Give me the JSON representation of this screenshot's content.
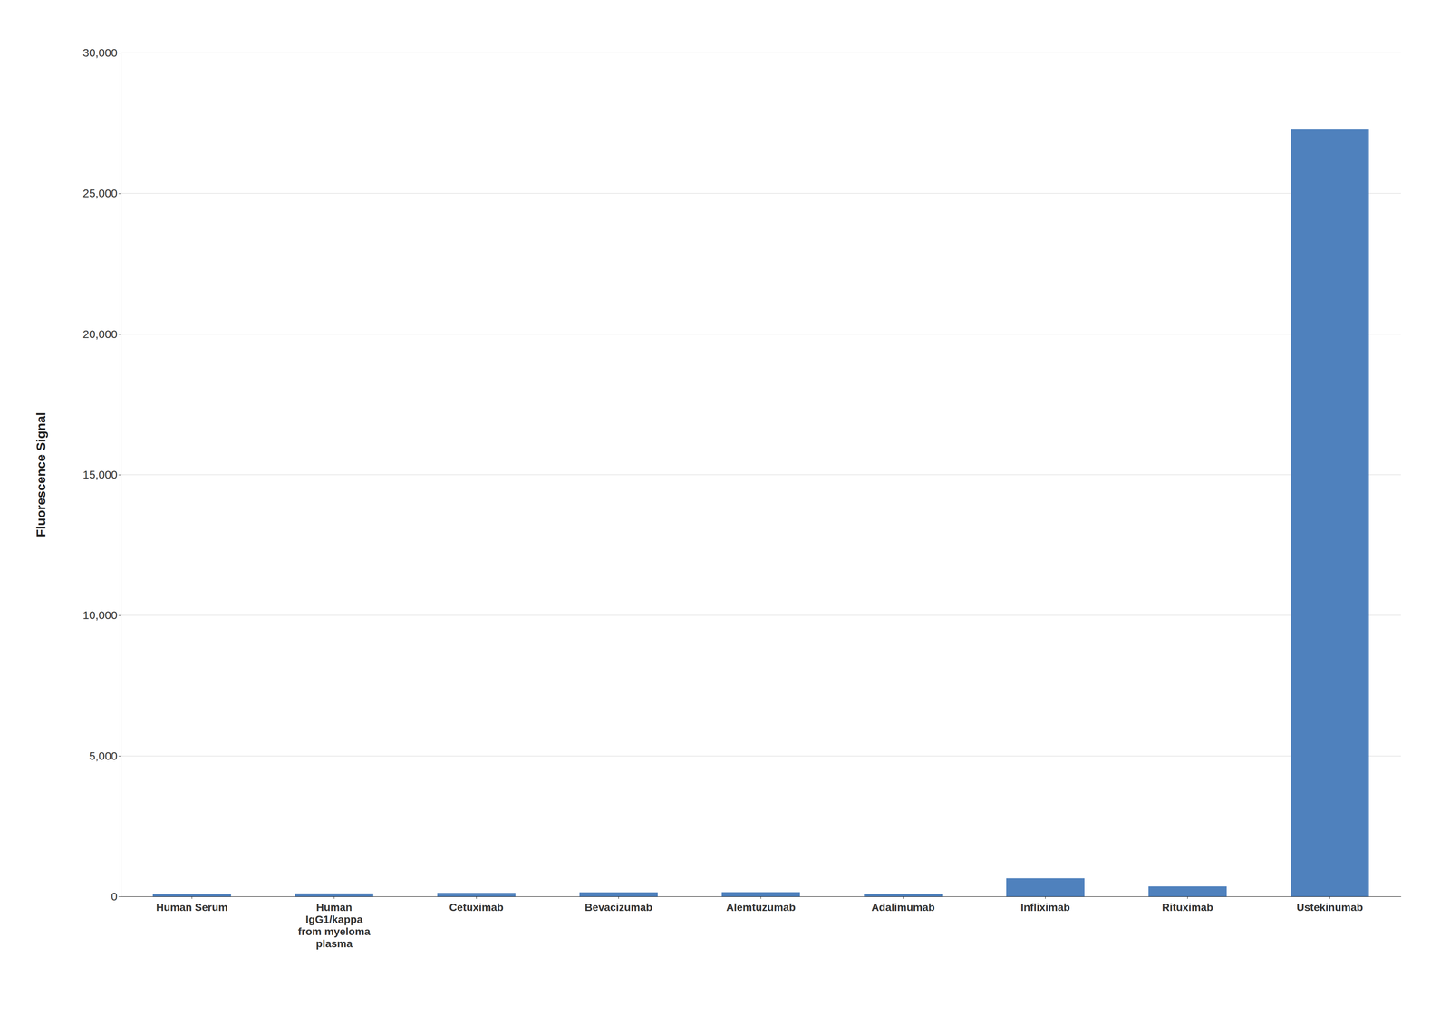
{
  "chart_data": {
    "type": "bar",
    "categories": [
      "Human Serum",
      "Human\nIgG1/kappa\nfrom myeloma\nplasma",
      "Cetuximab",
      "Bevacizumab",
      "Alemtuzumab",
      "Adalimumab",
      "Infliximab",
      "Rituximab",
      "Ustekinumab"
    ],
    "values": [
      80,
      110,
      130,
      150,
      155,
      100,
      650,
      360,
      27300
    ],
    "color": "#4F81BD",
    "ylabel": "Fluorescence Signal",
    "ylim": [
      0,
      30000
    ],
    "yticks": [
      0,
      {
        "value": 5000,
        "label": "5,000"
      },
      {
        "value": 10000,
        "label": "10,000"
      },
      {
        "value": 15000,
        "label": "15,000"
      },
      {
        "value": 20000,
        "label": "20,000"
      },
      {
        "value": 25000,
        "label": "25,000"
      },
      {
        "value": 30000,
        "label": "30,000"
      }
    ],
    "grid": true
  }
}
